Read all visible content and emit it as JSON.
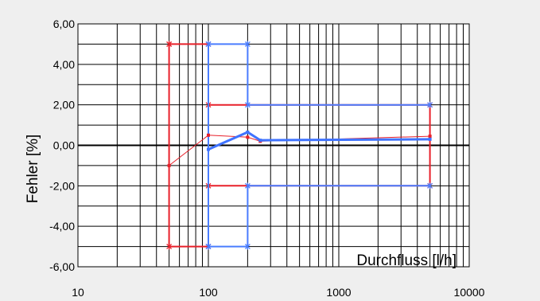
{
  "chart_data": {
    "type": "line",
    "title": "",
    "xlabel": "Durchfluss [l/h]",
    "ylabel": "Fehler [%]",
    "x_scale": "log",
    "xlim": [
      10,
      10000
    ],
    "ylim": [
      -6,
      6
    ],
    "grid": true,
    "x_ticks": [
      "10",
      "100",
      "1000",
      "10000"
    ],
    "y_ticks": [
      "6,00",
      "4,00",
      "2,00",
      "0,00",
      "-2,00",
      "-4,00",
      "-6,00"
    ],
    "series": [
      {
        "kind": "limit-envelope",
        "color": "#e8202a",
        "polylines": [
          {
            "x": [
              50,
              100,
              100,
              5000,
              5000,
              100,
              100,
              50,
              50
            ],
            "y": [
              5,
              5,
              2,
              2,
              -2,
              -2,
              -5,
              -5,
              5
            ]
          }
        ]
      },
      {
        "kind": "limit-envelope",
        "color": "#4a7dff",
        "polylines": [
          {
            "x": [
              100,
              200,
              200,
              5000
            ],
            "y": [
              5,
              5,
              2,
              2
            ]
          },
          {
            "x": [
              100,
              200,
              200,
              5000
            ],
            "y": [
              -5,
              -5,
              -2,
              -2
            ]
          },
          {
            "x": [
              100,
              100
            ],
            "y": [
              -5,
              5
            ]
          }
        ]
      },
      {
        "kind": "measured",
        "color": "#e8202a",
        "x": [
          50,
          100,
          200,
          250,
          5000
        ],
        "y": [
          -1.0,
          0.5,
          0.4,
          0.2,
          0.45
        ]
      },
      {
        "kind": "measured",
        "color": "#3f73ff",
        "x": [
          100,
          200,
          250,
          5000
        ],
        "y": [
          -0.2,
          0.65,
          0.25,
          0.3
        ]
      }
    ]
  }
}
